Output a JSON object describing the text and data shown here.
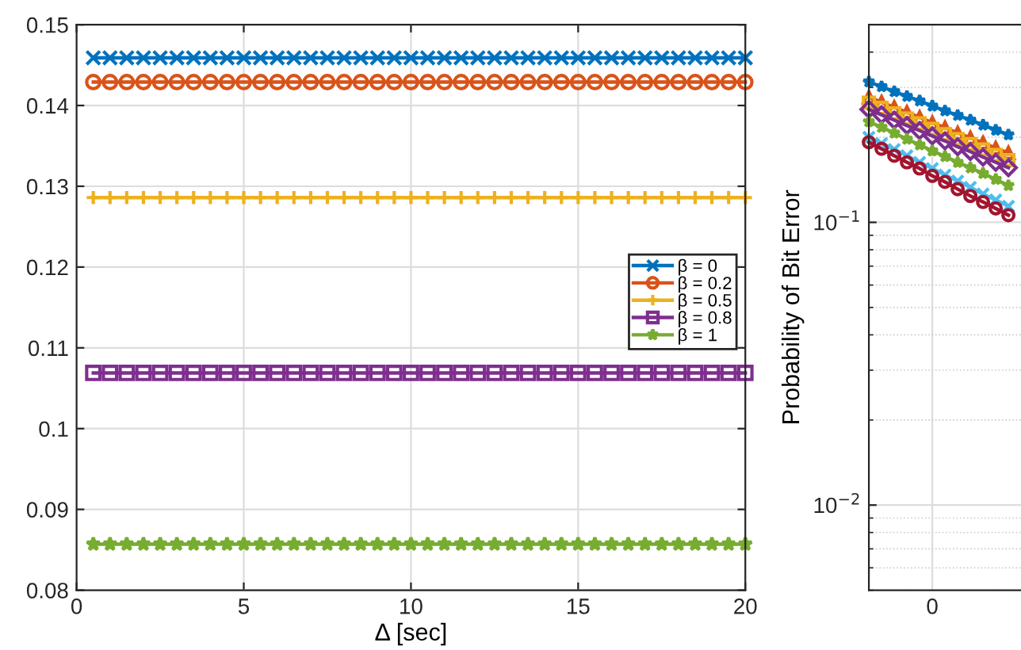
{
  "chart_data": [
    {
      "type": "line",
      "xlabel": "Δ [sec]",
      "x": [
        0.5,
        1,
        1.5,
        2,
        2.5,
        3,
        3.5,
        4,
        4.5,
        5,
        5.5,
        6,
        6.5,
        7,
        7.5,
        8,
        8.5,
        9,
        9.5,
        10,
        10.5,
        11,
        11.5,
        12,
        12.5,
        13,
        13.5,
        14,
        14.5,
        15,
        15.5,
        16,
        16.5,
        17,
        17.5,
        18,
        18.5,
        19,
        19.5,
        20
      ],
      "xlim": [
        0,
        20
      ],
      "xticks": [
        0,
        5,
        10,
        15,
        20
      ],
      "ylim": [
        0.08,
        0.15
      ],
      "yticks": [
        {
          "value": 0.08,
          "label": "0.08"
        },
        {
          "value": 0.09,
          "label": "0.09"
        },
        {
          "value": 0.1,
          "label": "0.1"
        },
        {
          "value": 0.11,
          "label": "0.11"
        },
        {
          "value": 0.12,
          "label": "0.12"
        },
        {
          "value": 0.13,
          "label": "0.13"
        },
        {
          "value": 0.14,
          "label": "0.14"
        },
        {
          "value": 0.15,
          "label": "0.15"
        }
      ],
      "grid": true,
      "legend": "right",
      "series": [
        {
          "name": "β = 0",
          "color": "#0072bd",
          "marker": "cross",
          "values": [
            0.1459,
            0.1459,
            0.1459,
            0.1459,
            0.1459,
            0.1459,
            0.1459,
            0.1459,
            0.1459,
            0.1459,
            0.1459,
            0.1459,
            0.1459,
            0.1459,
            0.1459,
            0.1459,
            0.1459,
            0.1459,
            0.1459,
            0.1459,
            0.1459,
            0.1459,
            0.1459,
            0.1459,
            0.1459,
            0.1459,
            0.1459,
            0.1459,
            0.1459,
            0.1459,
            0.1459,
            0.1459,
            0.1459,
            0.1459,
            0.1459,
            0.1459,
            0.1459,
            0.1459,
            0.1459,
            0.1459
          ]
        },
        {
          "name": "β = 0.2",
          "color": "#d95319",
          "marker": "circle",
          "values": [
            0.1429,
            0.1429,
            0.1429,
            0.1429,
            0.1429,
            0.1429,
            0.1429,
            0.1429,
            0.1429,
            0.1429,
            0.1429,
            0.1429,
            0.1429,
            0.1429,
            0.1429,
            0.1429,
            0.1429,
            0.1429,
            0.1429,
            0.1429,
            0.1429,
            0.1429,
            0.1429,
            0.1429,
            0.1429,
            0.1429,
            0.1429,
            0.1429,
            0.1429,
            0.1429,
            0.1429,
            0.1429,
            0.1429,
            0.1429,
            0.1429,
            0.1429,
            0.1429,
            0.1429,
            0.1429,
            0.1429
          ]
        },
        {
          "name": "β = 0.5",
          "color": "#edb120",
          "marker": "plus",
          "values": [
            0.1286,
            0.1286,
            0.1286,
            0.1286,
            0.1286,
            0.1286,
            0.1286,
            0.1286,
            0.1286,
            0.1286,
            0.1286,
            0.1286,
            0.1286,
            0.1286,
            0.1286,
            0.1286,
            0.1286,
            0.1286,
            0.1286,
            0.1286,
            0.1286,
            0.1286,
            0.1286,
            0.1286,
            0.1286,
            0.1286,
            0.1286,
            0.1286,
            0.1286,
            0.1286,
            0.1286,
            0.1286,
            0.1286,
            0.1286,
            0.1286,
            0.1286,
            0.1286,
            0.1286,
            0.1286,
            0.1286
          ]
        },
        {
          "name": "β = 0.8",
          "color": "#7e2f8e",
          "marker": "square",
          "values": [
            0.1069,
            0.1069,
            0.1069,
            0.1069,
            0.1069,
            0.1069,
            0.1069,
            0.1069,
            0.1069,
            0.1069,
            0.1069,
            0.1069,
            0.1069,
            0.1069,
            0.1069,
            0.1069,
            0.1069,
            0.1069,
            0.1069,
            0.1069,
            0.1069,
            0.1069,
            0.1069,
            0.1069,
            0.1069,
            0.1069,
            0.1069,
            0.1069,
            0.1069,
            0.1069,
            0.1069,
            0.1069,
            0.1069,
            0.1069,
            0.1069,
            0.1069,
            0.1069,
            0.1069,
            0.1069,
            0.1069
          ]
        },
        {
          "name": "β = 1",
          "color": "#77ac30",
          "marker": "star",
          "values": [
            0.0857,
            0.0857,
            0.0857,
            0.0857,
            0.0857,
            0.0857,
            0.0857,
            0.0857,
            0.0857,
            0.0857,
            0.0857,
            0.0857,
            0.0857,
            0.0857,
            0.0857,
            0.0857,
            0.0857,
            0.0857,
            0.0857,
            0.0857,
            0.0857,
            0.0857,
            0.0857,
            0.0857,
            0.0857,
            0.0857,
            0.0857,
            0.0857,
            0.0857,
            0.0857,
            0.0857,
            0.0857,
            0.0857,
            0.0857,
            0.0857,
            0.0857,
            0.0857,
            0.0857,
            0.0857,
            0.0857
          ]
        }
      ]
    },
    {
      "type": "line",
      "ylabel": "Probability of Bit Error",
      "log": "y",
      "categories": [
        null,
        null,
        null,
        null,
        null,
        "0",
        null,
        null,
        null,
        null,
        null,
        null
      ],
      "ylim": [
        0.005,
        0.5
      ],
      "yticks": [
        {
          "value": 0.01,
          "label": "10$^{−2}$"
        },
        {
          "value": 0.1,
          "label": "10$^{−1}$"
        }
      ],
      "grid": true,
      "series": [
        {
          "color": "#0072bd",
          "marker": "star",
          "values": [
            0.314,
            0.302,
            0.29,
            0.279,
            0.269,
            0.258,
            0.248,
            0.239,
            0.23,
            0.221,
            0.212,
            0.204
          ]
        },
        {
          "color": "#d95319",
          "marker": "triangle",
          "values": [
            0.277,
            0.266,
            0.255,
            0.245,
            0.235,
            0.225,
            0.216,
            0.207,
            0.199,
            0.191,
            0.183,
            0.176
          ]
        },
        {
          "color": "#edb120",
          "marker": "square",
          "values": [
            0.265,
            0.254,
            0.243,
            0.233,
            0.224,
            0.214,
            0.205,
            0.197,
            0.189,
            0.181,
            0.173,
            0.166
          ]
        },
        {
          "color": "#7e2f8e",
          "marker": "diamond",
          "values": [
            0.251,
            0.24,
            0.23,
            0.22,
            0.211,
            0.202,
            0.194,
            0.185,
            0.178,
            0.17,
            0.163,
            0.156
          ]
        },
        {
          "color": "#77ac30",
          "marker": "star",
          "values": [
            0.227,
            0.217,
            0.207,
            0.197,
            0.188,
            0.179,
            0.171,
            0.163,
            0.156,
            0.149,
            0.142,
            0.135
          ]
        },
        {
          "color": "#4dbeee",
          "marker": "cross",
          "values": [
            0.2,
            0.19,
            0.181,
            0.172,
            0.163,
            0.155,
            0.147,
            0.14,
            0.133,
            0.126,
            0.12,
            0.114
          ]
        },
        {
          "color": "#a2142f",
          "marker": "circle",
          "values": [
            0.192,
            0.182,
            0.172,
            0.163,
            0.155,
            0.146,
            0.139,
            0.131,
            0.124,
            0.118,
            0.112,
            0.106
          ]
        }
      ]
    }
  ]
}
